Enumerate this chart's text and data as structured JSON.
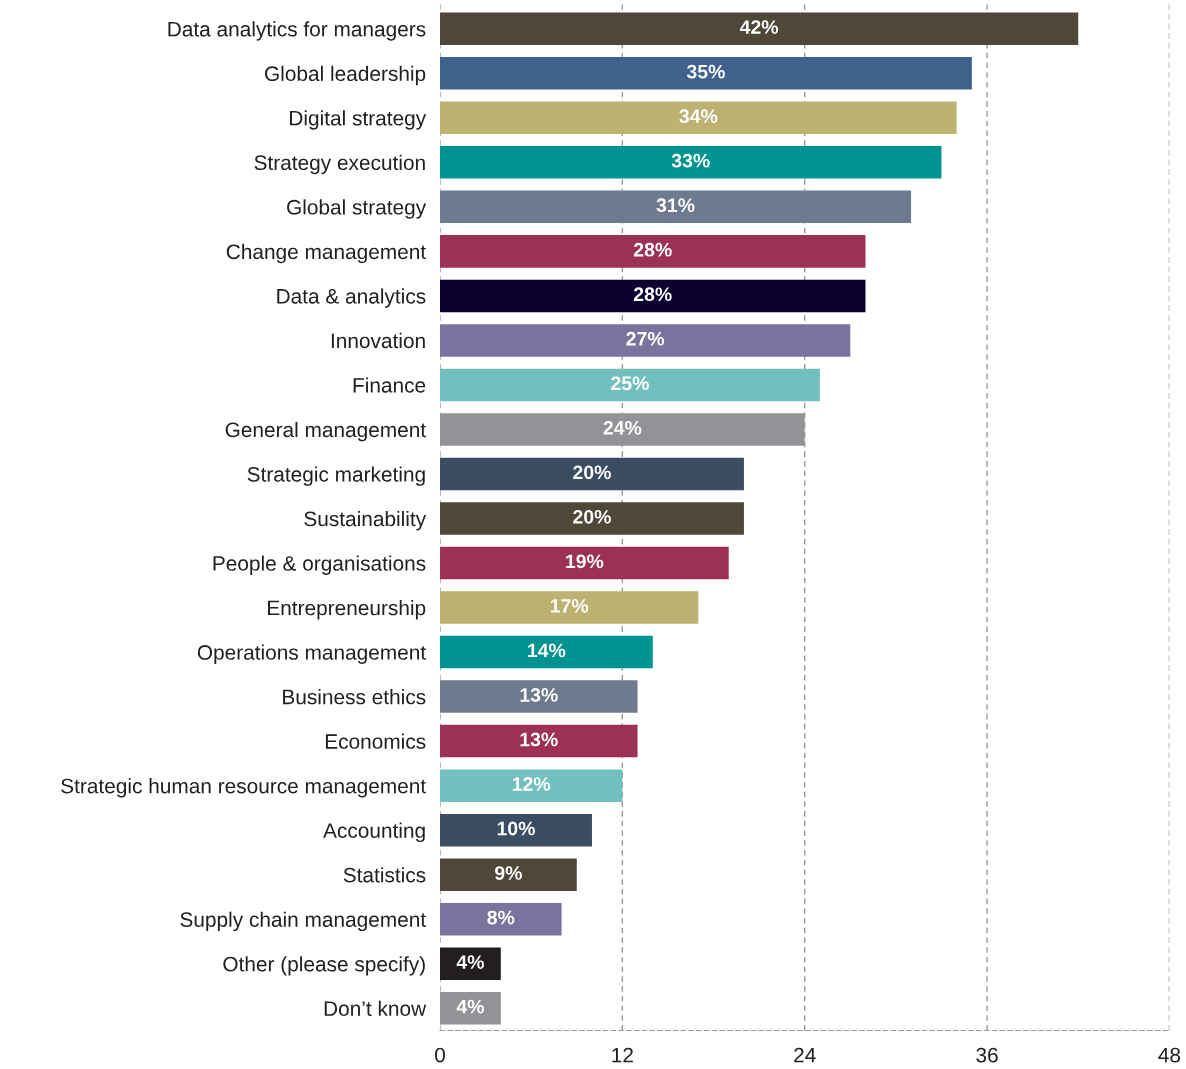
{
  "chart_data": {
    "type": "bar",
    "orientation": "horizontal",
    "categories": [
      "Data analytics for managers",
      "Global leadership",
      "Digital strategy",
      "Strategy execution",
      "Global strategy",
      "Change management",
      "Data & analytics",
      "Innovation",
      "Finance",
      "General management",
      "Strategic marketing",
      "Sustainability",
      "People & organisations",
      "Entrepreneurship",
      "Operations management",
      "Business ethics",
      "Economics",
      "Strategic human resource management",
      "Accounting",
      "Statistics",
      "Supply chain management",
      "Other (please specify)",
      "Don’t know"
    ],
    "values": [
      42,
      35,
      34,
      33,
      31,
      28,
      28,
      27,
      25,
      24,
      20,
      20,
      19,
      17,
      14,
      13,
      13,
      12,
      10,
      9,
      8,
      4,
      4
    ],
    "value_labels": [
      "42%",
      "35%",
      "34%",
      "33%",
      "31%",
      "28%",
      "28%",
      "27%",
      "25%",
      "24%",
      "20%",
      "20%",
      "19%",
      "17%",
      "14%",
      "13%",
      "13%",
      "12%",
      "10%",
      "9%",
      "8%",
      "4%",
      "4%"
    ],
    "colors": [
      "#4f4738",
      "#40618c",
      "#bdb271",
      "#009490",
      "#6e7b8e",
      "#9c3057",
      "#0b0030",
      "#7b739e",
      "#72bfc0",
      "#939397",
      "#3a4d63",
      "#4f4738",
      "#9c3057",
      "#bdb271",
      "#009490",
      "#6e7b8e",
      "#9c3057",
      "#72bfc0",
      "#3a4d63",
      "#4f4738",
      "#7b739e",
      "#231f20",
      "#939397"
    ],
    "xlim": [
      0,
      48
    ],
    "xticks": [
      0,
      12,
      24,
      36,
      48
    ],
    "grid": "x"
  }
}
